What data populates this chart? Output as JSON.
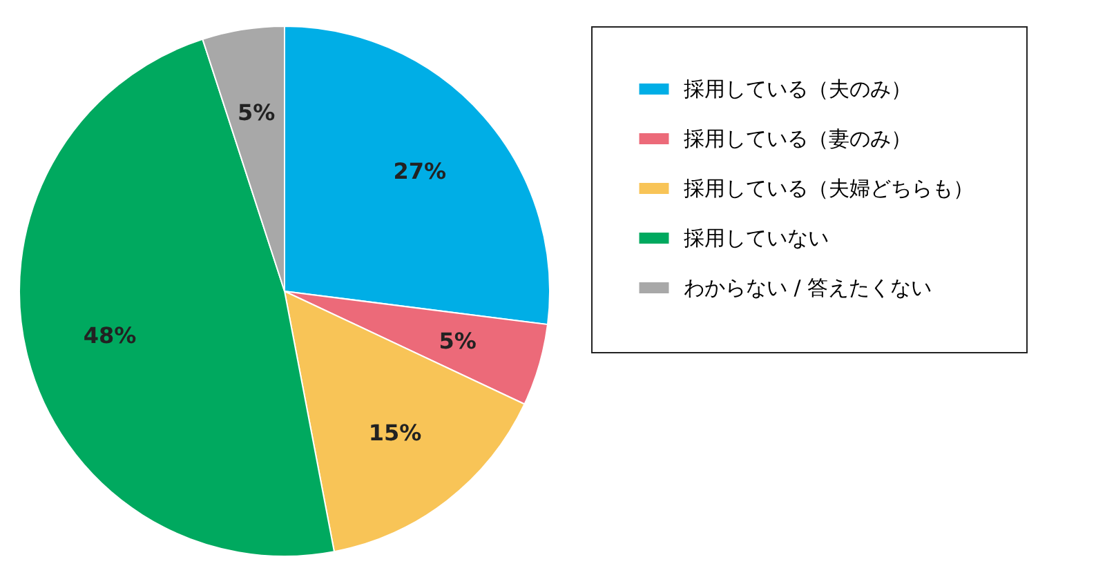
{
  "chart_data": {
    "type": "pie",
    "categories": [
      "採用している（夫のみ）",
      "採用している（妻のみ）",
      "採用している（夫婦どちらも）",
      "採用していない",
      "わからない / 答えたくない"
    ],
    "values": [
      27,
      5,
      15,
      48,
      5
    ],
    "colors": [
      "#00aee6",
      "#ec6a79",
      "#f8c457",
      "#00a95f",
      "#a8a8a8"
    ],
    "value_labels": [
      "27%",
      "5%",
      "15%",
      "48%",
      "5%"
    ],
    "legend": "right"
  }
}
